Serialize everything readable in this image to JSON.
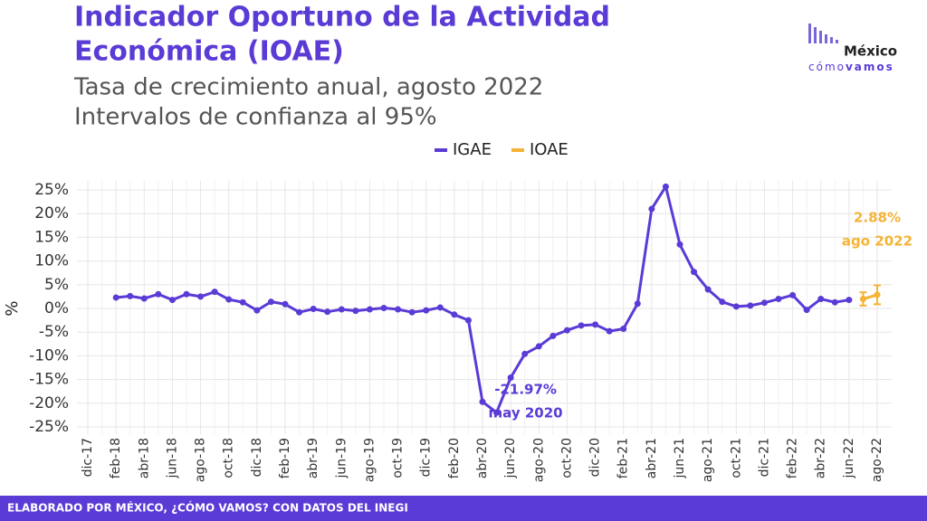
{
  "chart_data": {
    "type": "line",
    "title": [
      "Indicador Oportuno de la Actividad",
      "Económica (IOAE)"
    ],
    "subtitle": [
      "Tasa de crecimiento anual, agosto 2022",
      "Intervalos de confianza al 95%"
    ],
    "ylabel": "%",
    "footer": "ELABORADO POR MÉXICO, ¿CÓMO VAMOS? CON DATOS DEL INEGI",
    "logo": {
      "top": "México",
      "bottom_light": "cómo",
      "bottom_bold": "vamos"
    },
    "categories": [
      "dic-17",
      null,
      "feb-18",
      null,
      "abr-18",
      null,
      "jun-18",
      null,
      "ago-18",
      null,
      "oct-18",
      null,
      "dic-18",
      null,
      "feb-19",
      null,
      "abr-19",
      null,
      "jun-19",
      null,
      "ago-19",
      null,
      "oct-19",
      null,
      "dic-19",
      null,
      "feb-20",
      null,
      "abr-20",
      null,
      "jun-20",
      null,
      "ago-20",
      null,
      "oct-20",
      null,
      "dic-20",
      null,
      "feb-21",
      null,
      "abr-21",
      null,
      "jun-21",
      null,
      "ago-21",
      null,
      "oct-21",
      null,
      "dic-21",
      null,
      "feb-22",
      null,
      "abr-22",
      null,
      "jun-22",
      null,
      "ago-22"
    ],
    "series": [
      {
        "name": "IGAE",
        "color": "#5b3bd6",
        "values": [
          null,
          null,
          2.3,
          2.6,
          2.1,
          3.0,
          1.8,
          3.0,
          2.5,
          3.5,
          1.9,
          1.3,
          -0.4,
          1.4,
          0.9,
          -0.8,
          -0.1,
          -0.7,
          -0.2,
          -0.5,
          -0.2,
          0.1,
          -0.2,
          -0.8,
          -0.4,
          0.2,
          -1.3,
          -2.5,
          -19.7,
          -21.97,
          -14.6,
          -9.6,
          -8.0,
          -5.8,
          -4.6,
          -3.6,
          -3.4,
          -4.8,
          -4.3,
          1.0,
          21.0,
          25.7,
          13.5,
          7.7,
          4.0,
          1.4,
          0.4,
          0.6,
          1.2,
          2.0,
          2.8,
          -0.3,
          2.0,
          1.3,
          1.8,
          null,
          null
        ]
      },
      {
        "name": "IOAE",
        "color": "#f5b335",
        "values": [
          null,
          null,
          null,
          null,
          null,
          null,
          null,
          null,
          null,
          null,
          null,
          null,
          null,
          null,
          null,
          null,
          null,
          null,
          null,
          null,
          null,
          null,
          null,
          null,
          null,
          null,
          null,
          null,
          null,
          null,
          null,
          null,
          null,
          null,
          null,
          null,
          null,
          null,
          null,
          null,
          null,
          null,
          null,
          null,
          null,
          null,
          null,
          null,
          null,
          null,
          null,
          null,
          null,
          null,
          null,
          2.0,
          2.88
        ],
        "errors": [
          null,
          null,
          null,
          null,
          null,
          null,
          null,
          null,
          null,
          null,
          null,
          null,
          null,
          null,
          null,
          null,
          null,
          null,
          null,
          null,
          null,
          null,
          null,
          null,
          null,
          null,
          null,
          null,
          null,
          null,
          null,
          null,
          null,
          null,
          null,
          null,
          null,
          null,
          null,
          null,
          null,
          null,
          null,
          null,
          null,
          null,
          null,
          null,
          null,
          null,
          null,
          null,
          null,
          null,
          null,
          1.4,
          2.0
        ]
      }
    ],
    "annotations": [
      {
        "lines": [
          "-21.97%",
          "may 2020"
        ],
        "series": 0,
        "index": 29
      },
      {
        "lines": [
          "2.88%",
          "ago 2022"
        ],
        "series": 1,
        "index": 56
      }
    ],
    "ylim": [
      -25,
      25
    ],
    "yticks": [
      {
        "value": -25,
        "label": "-25%"
      },
      {
        "value": -20,
        "label": "-20%"
      },
      {
        "value": -15,
        "label": "-15%"
      },
      {
        "value": -10,
        "label": "-10%"
      },
      {
        "value": -5,
        "label": "-5%"
      },
      {
        "value": 0,
        "label": "0%"
      },
      {
        "value": 5,
        "label": "5%"
      },
      {
        "value": 10,
        "label": "10%"
      },
      {
        "value": 15,
        "label": "15%"
      },
      {
        "value": 20,
        "label": "20%"
      },
      {
        "value": 25,
        "label": "25%"
      }
    ],
    "grid": true,
    "legend": "top"
  }
}
